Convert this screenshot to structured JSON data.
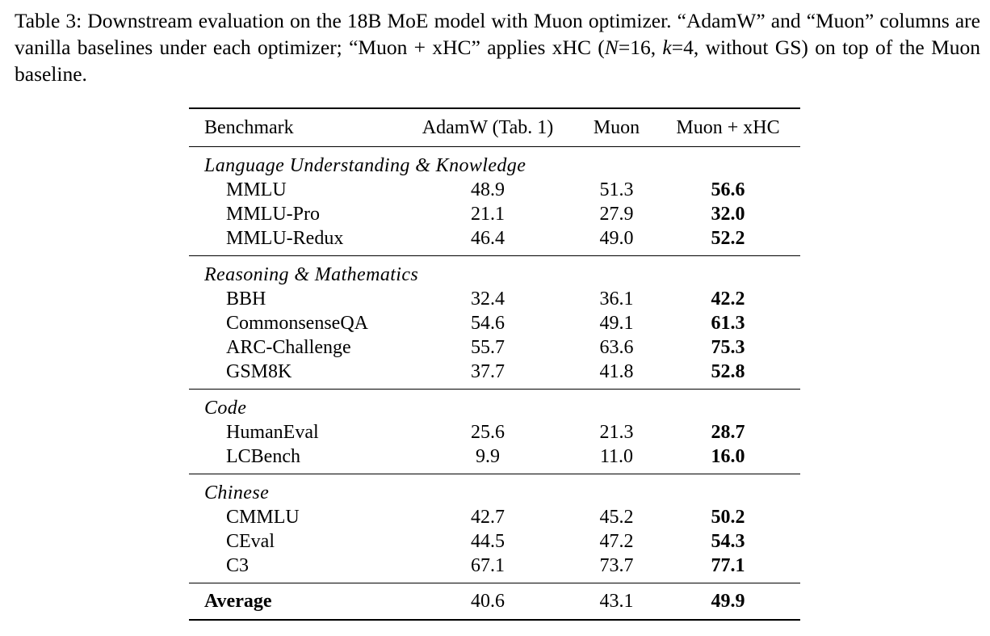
{
  "caption": {
    "label": "Table 3:",
    "text_part1": " Downstream evaluation on the 18B MoE model with Muon optimizer. “AdamW” and “Muon” columns are vanilla baselines under each optimizer; “Muon + xHC” applies xHC (",
    "var_n": "N",
    "eq_n": "=16, ",
    "var_k": "k",
    "eq_k": "=4, without GS) on top of the Muon baseline."
  },
  "table": {
    "headers": [
      "Benchmark",
      "AdamW (Tab. 1)",
      "Muon",
      "Muon + xHC"
    ],
    "groups": [
      {
        "title": "Language Understanding & Knowledge",
        "rows": [
          {
            "name": "MMLU",
            "adamw": "48.9",
            "muon": "51.3",
            "xhc": "56.6"
          },
          {
            "name": "MMLU-Pro",
            "adamw": "21.1",
            "muon": "27.9",
            "xhc": "32.0"
          },
          {
            "name": "MMLU-Redux",
            "adamw": "46.4",
            "muon": "49.0",
            "xhc": "52.2"
          }
        ]
      },
      {
        "title": "Reasoning & Mathematics",
        "rows": [
          {
            "name": "BBH",
            "adamw": "32.4",
            "muon": "36.1",
            "xhc": "42.2"
          },
          {
            "name": "CommonsenseQA",
            "adamw": "54.6",
            "muon": "49.1",
            "xhc": "61.3"
          },
          {
            "name": "ARC-Challenge",
            "adamw": "55.7",
            "muon": "63.6",
            "xhc": "75.3"
          },
          {
            "name": "GSM8K",
            "adamw": "37.7",
            "muon": "41.8",
            "xhc": "52.8"
          }
        ]
      },
      {
        "title": "Code",
        "rows": [
          {
            "name": "HumanEval",
            "adamw": "25.6",
            "muon": "21.3",
            "xhc": "28.7"
          },
          {
            "name": "LCBench",
            "adamw": "9.9",
            "muon": "11.0",
            "xhc": "16.0"
          }
        ]
      },
      {
        "title": "Chinese",
        "rows": [
          {
            "name": "CMMLU",
            "adamw": "42.7",
            "muon": "45.2",
            "xhc": "50.2"
          },
          {
            "name": "CEval",
            "adamw": "44.5",
            "muon": "47.2",
            "xhc": "54.3"
          },
          {
            "name": "C3",
            "adamw": "67.1",
            "muon": "73.7",
            "xhc": "77.1"
          }
        ]
      }
    ],
    "average": {
      "label": "Average",
      "adamw": "40.6",
      "muon": "43.1",
      "xhc": "49.9"
    }
  }
}
